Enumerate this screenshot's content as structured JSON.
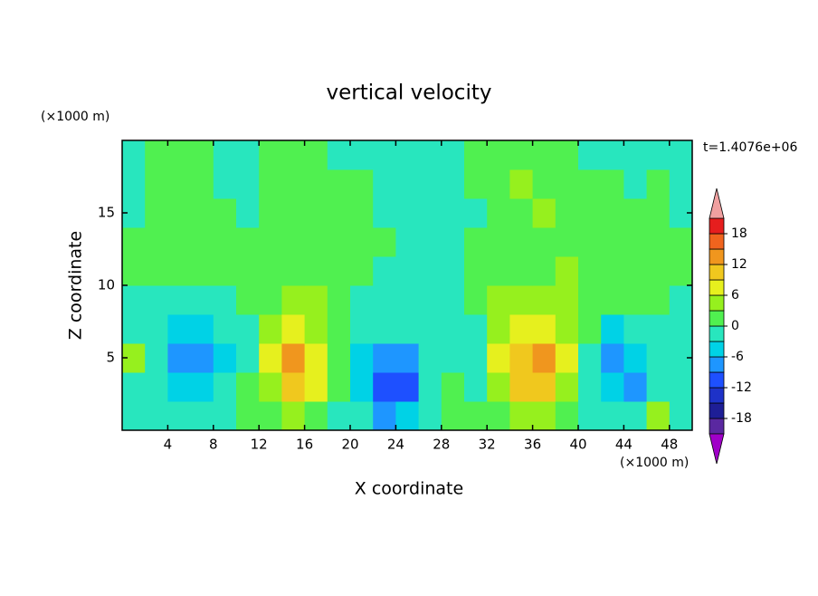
{
  "chart_data": {
    "type": "contour",
    "title": "vertical velocity",
    "x_label": "X coordinate",
    "y_label": "Z coordinate",
    "x_unit": "(×1000 m)",
    "y_unit": "(×1000 m)",
    "time_label": "t=1.4076e+06",
    "xlim": [
      0,
      50
    ],
    "ylim": [
      0,
      20
    ],
    "xticks": [
      4,
      8,
      12,
      16,
      20,
      24,
      28,
      32,
      36,
      40,
      44,
      48
    ],
    "yticks": [
      5,
      10,
      15
    ],
    "x": [
      1,
      3,
      5,
      7,
      9,
      11,
      13,
      15,
      17,
      19,
      21,
      23,
      25,
      27,
      29,
      31,
      33,
      35,
      37,
      39,
      41,
      43,
      45,
      47,
      49
    ],
    "z": [
      1,
      3,
      5,
      7,
      9,
      11,
      13,
      15,
      17,
      19
    ],
    "values": [
      [
        -2,
        -2,
        -3,
        -2,
        -1,
        1,
        2,
        3,
        1,
        -1,
        -3,
        -8,
        -4,
        -1,
        1,
        0,
        2,
        3,
        3,
        1,
        -1,
        -3,
        -2,
        4,
        -1
      ],
      [
        -2,
        -2,
        -4,
        -4,
        -2,
        0,
        4,
        10,
        6,
        2,
        -4,
        -12,
        -10,
        -2,
        1,
        -1,
        5,
        11,
        11,
        4,
        -1,
        -6,
        -8,
        -2,
        -2
      ],
      [
        5,
        -2,
        -9,
        -8,
        -4,
        -1,
        6,
        13,
        7,
        1,
        -4,
        -9,
        -8,
        -3,
        -2,
        -1,
        6,
        11,
        12,
        6,
        -2,
        -8,
        -6,
        -2,
        -2
      ],
      [
        -1,
        -3,
        -5,
        -5,
        -3,
        -1,
        4,
        6,
        5,
        2,
        -2,
        -3,
        -3,
        -2,
        -2,
        -1,
        4,
        7,
        7,
        5,
        1,
        -4,
        -3,
        -1,
        -2
      ],
      [
        -1,
        -2,
        -1,
        -1,
        -1,
        0,
        2,
        3,
        3,
        1,
        -1,
        -1,
        -2,
        -2,
        -1,
        1,
        3,
        4,
        4,
        3,
        1,
        0,
        1,
        2,
        -1
      ],
      [
        1,
        1,
        1,
        1,
        0,
        1,
        1,
        2,
        1,
        1,
        0,
        -1,
        -1,
        -2,
        -1,
        0,
        1,
        1,
        1,
        4,
        1,
        1,
        1,
        2,
        1
      ],
      [
        1,
        1,
        1,
        0,
        1,
        1,
        2,
        1,
        1,
        1,
        1,
        1,
        -1,
        -1,
        -1,
        1,
        1,
        1,
        1,
        2,
        1,
        1,
        1,
        1,
        1
      ],
      [
        -1,
        1,
        1,
        1,
        1,
        -1,
        1,
        1,
        1,
        1,
        1,
        -1,
        -2,
        -2,
        -1,
        -1,
        1,
        2,
        3,
        1,
        1,
        1,
        1,
        1,
        -1
      ],
      [
        -1,
        1,
        1,
        2,
        -1,
        -1,
        1,
        1,
        1,
        1,
        1,
        -1,
        -2,
        -1,
        -1,
        1,
        2,
        3,
        2,
        1,
        1,
        1,
        -1,
        1,
        -1
      ],
      [
        -1,
        1,
        1,
        1,
        -1,
        -1,
        1,
        1,
        1,
        -1,
        -1,
        -1,
        -1,
        -1,
        -1,
        1,
        1,
        1,
        1,
        1,
        -1,
        -1,
        -1,
        -1,
        -1
      ]
    ],
    "colorbar": {
      "levels": [
        -21,
        -18,
        -15,
        -12,
        -9,
        -6,
        -3,
        0,
        3,
        6,
        9,
        12,
        15,
        18,
        21
      ],
      "ticks": [
        -18,
        -12,
        -6,
        0,
        6,
        12,
        18
      ],
      "colors": [
        "#a000c8",
        "#5a28a0",
        "#1e1e96",
        "#1e32c8",
        "#1e50ff",
        "#1e96ff",
        "#00d2e6",
        "#28e6be",
        "#50f050",
        "#96f01e",
        "#e6f01e",
        "#f0c81e",
        "#f0961e",
        "#f0641e",
        "#e61e1e",
        "#f0a0a0"
      ]
    }
  }
}
